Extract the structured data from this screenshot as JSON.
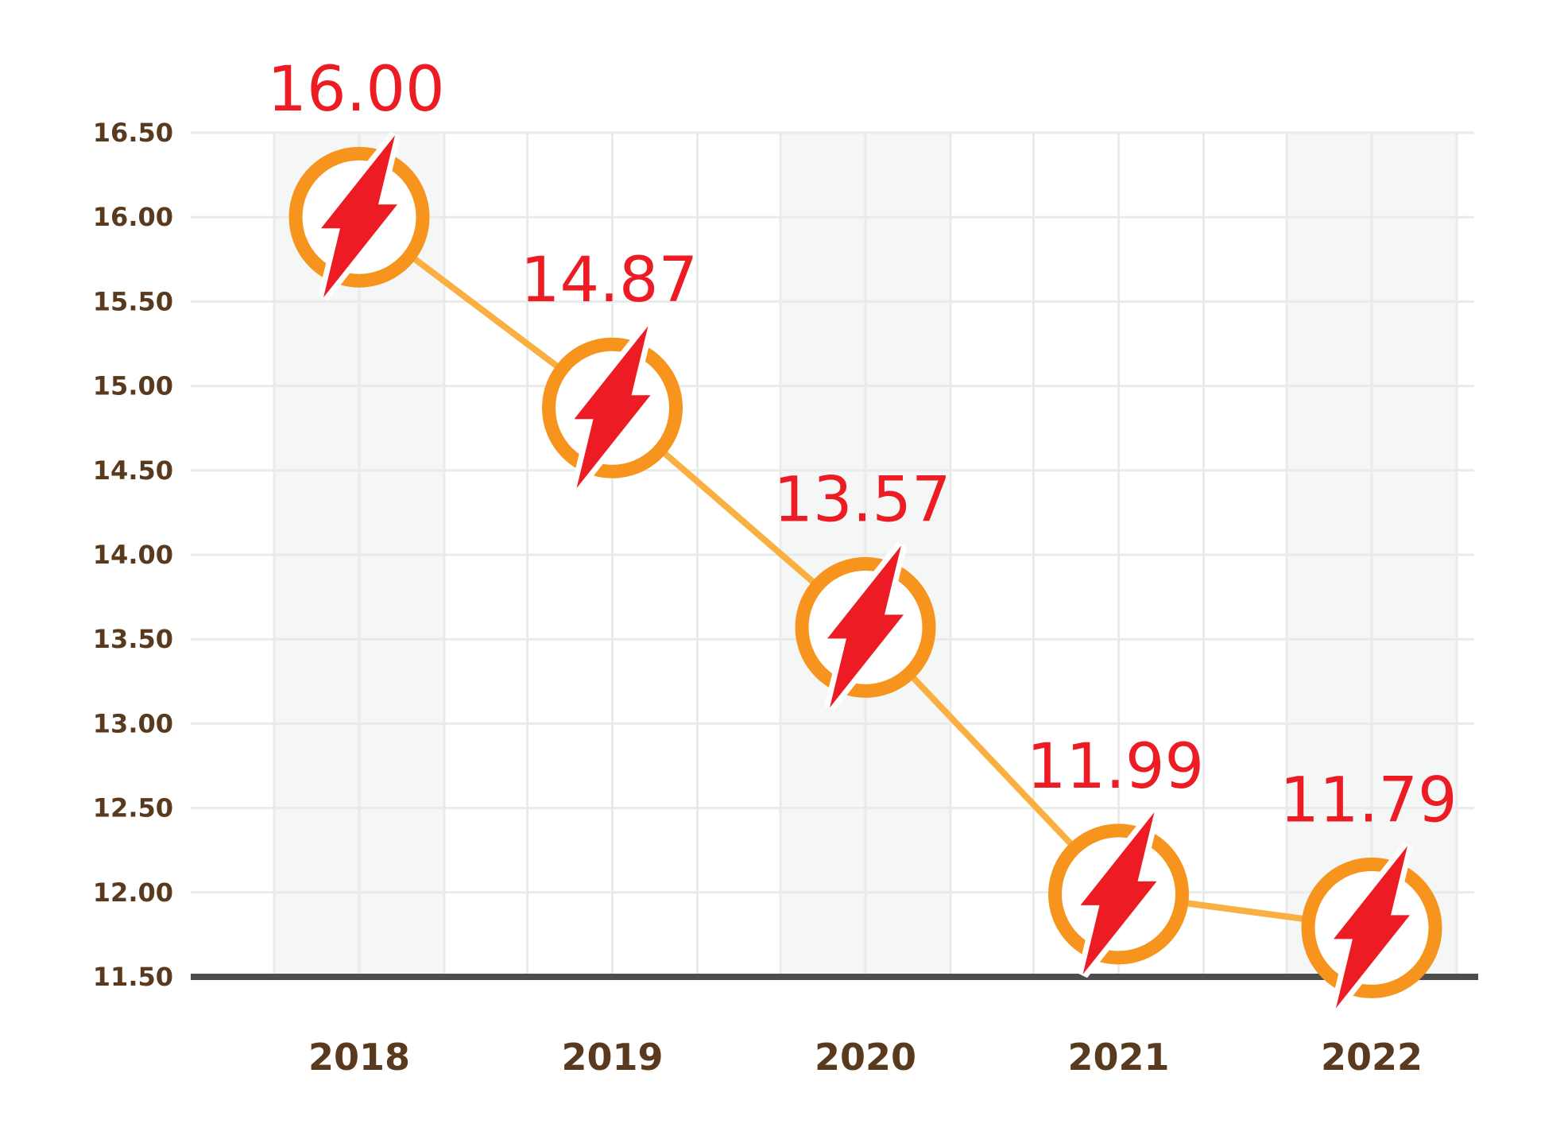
{
  "chart_data": {
    "type": "line",
    "title": "",
    "xlabel": "",
    "ylabel": "",
    "categories": [
      "2018",
      "2019",
      "2020",
      "2021",
      "2022"
    ],
    "values": [
      16.0,
      14.87,
      13.57,
      11.99,
      11.79
    ],
    "data_labels": [
      "16.00",
      "14.87",
      "13.57",
      "11.99",
      "11.79"
    ],
    "ylim": [
      11.5,
      16.5
    ],
    "yticks": [
      "11.50",
      "12.00",
      "12.50",
      "13.00",
      "13.50",
      "14.00",
      "14.50",
      "15.00",
      "15.50",
      "16.00",
      "16.50"
    ],
    "grid": true,
    "legend": "none",
    "marker_icon": "lightning-bolt-icon",
    "colors": {
      "line": "#f9b040",
      "marker_ring": "#f7941d",
      "bolt": "#ed1c24",
      "label": "#ed1c24",
      "tick_text": "#5a3a1e",
      "grid": "#e9ebea",
      "band": "#f5f7f6",
      "axis": "#4d4d4d"
    }
  }
}
